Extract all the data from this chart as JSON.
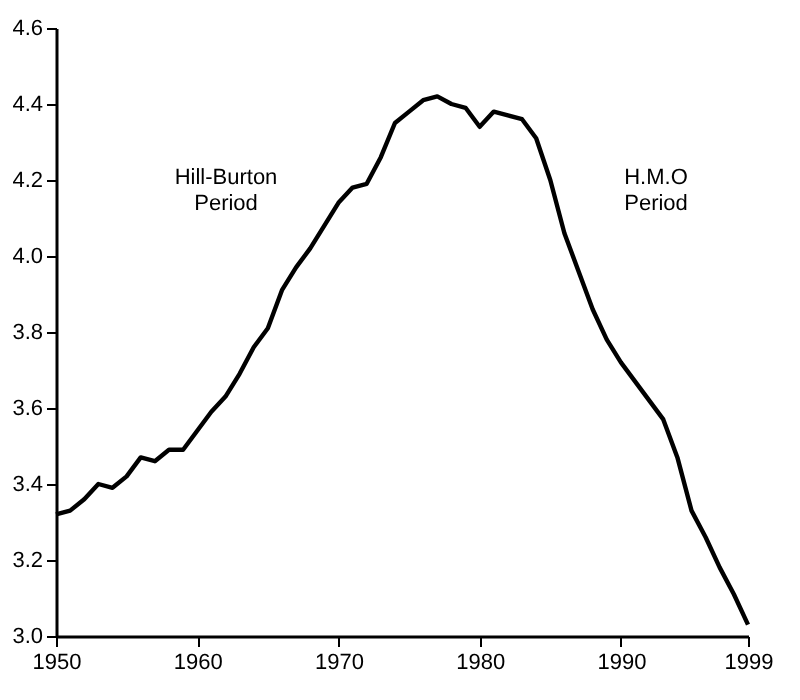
{
  "chart_data": {
    "type": "line",
    "x": [
      1950,
      1951,
      1952,
      1953,
      1954,
      1955,
      1956,
      1957,
      1958,
      1959,
      1960,
      1961,
      1962,
      1963,
      1964,
      1965,
      1966,
      1967,
      1968,
      1969,
      1970,
      1971,
      1972,
      1973,
      1974,
      1975,
      1976,
      1977,
      1978,
      1979,
      1980,
      1981,
      1982,
      1983,
      1984,
      1985,
      1986,
      1987,
      1988,
      1989,
      1990,
      1991,
      1992,
      1993,
      1994,
      1995,
      1996,
      1997,
      1998,
      1999
    ],
    "series": [
      {
        "color": "#000000",
        "values": [
          3.32,
          3.33,
          3.36,
          3.4,
          3.39,
          3.42,
          3.47,
          3.46,
          3.49,
          3.49,
          3.54,
          3.59,
          3.63,
          3.69,
          3.76,
          3.81,
          3.91,
          3.97,
          4.02,
          4.08,
          4.14,
          4.18,
          4.19,
          4.26,
          4.35,
          4.38,
          4.41,
          4.42,
          4.4,
          4.39,
          4.34,
          4.38,
          4.37,
          4.36,
          4.31,
          4.2,
          4.06,
          3.96,
          3.86,
          3.78,
          3.72,
          3.67,
          3.62,
          3.57,
          3.47,
          3.33,
          3.26,
          3.18,
          3.11,
          3.03
        ]
      }
    ],
    "xlim": [
      1950,
      1999
    ],
    "xticks": [
      1950,
      1960,
      1970,
      1980,
      1990,
      1999
    ],
    "ylim": [
      3.0,
      4.6
    ],
    "yticks": [
      {
        "value": 3,
        "label": "3.0"
      },
      3.2,
      3.4,
      3.6,
      3.8,
      {
        "value": 4,
        "label": "4.0"
      },
      4.2,
      4.4,
      4.6
    ],
    "grid": false,
    "legend": false,
    "marker": "none",
    "line_style": "solid",
    "annotations": [
      "Hill-Burton\nPeriod",
      "H.M.O\nPeriod"
    ]
  }
}
